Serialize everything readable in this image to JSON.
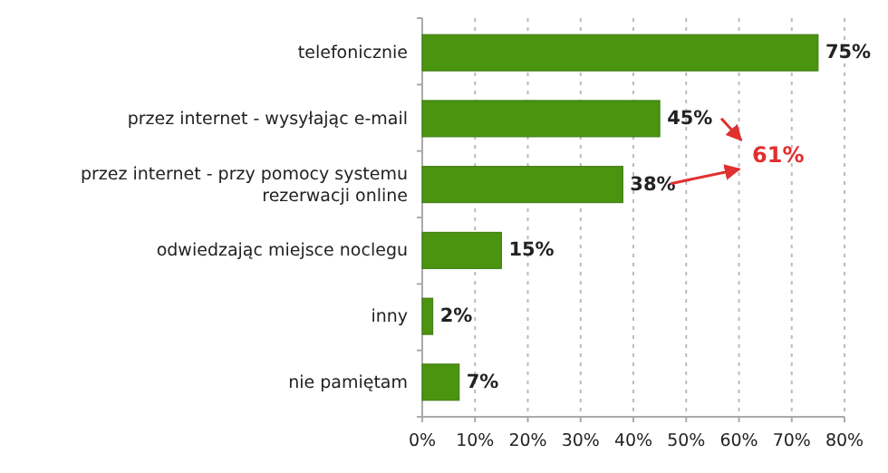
{
  "chart_data": {
    "type": "bar",
    "orientation": "horizontal",
    "categories": [
      "telefonicznie",
      "przez internet - wysyłając e-mail",
      "przez internet - przy pomocy systemu rezerwacji online",
      "odwiedzając miejsce noclegu",
      "inny",
      "nie pamiętam"
    ],
    "values": [
      75,
      45,
      38,
      15,
      2,
      7
    ],
    "value_labels": [
      "75%",
      "45%",
      "38%",
      "15%",
      "2%",
      "7%"
    ],
    "color": "#4a9410",
    "xlim": [
      0,
      80
    ],
    "xticks": [
      {
        "value": 0,
        "label": "0%"
      },
      {
        "value": 10,
        "label": "10%"
      },
      {
        "value": 20,
        "label": "20%"
      },
      {
        "value": 30,
        "label": "30%"
      },
      {
        "value": 40,
        "label": "40%"
      },
      {
        "value": 50,
        "label": "50%"
      },
      {
        "value": 60,
        "label": "60%"
      },
      {
        "value": 70,
        "label": "70%"
      },
      {
        "value": 80,
        "label": "80%"
      }
    ],
    "grid": "x",
    "annotations": [
      "61%"
    ]
  }
}
